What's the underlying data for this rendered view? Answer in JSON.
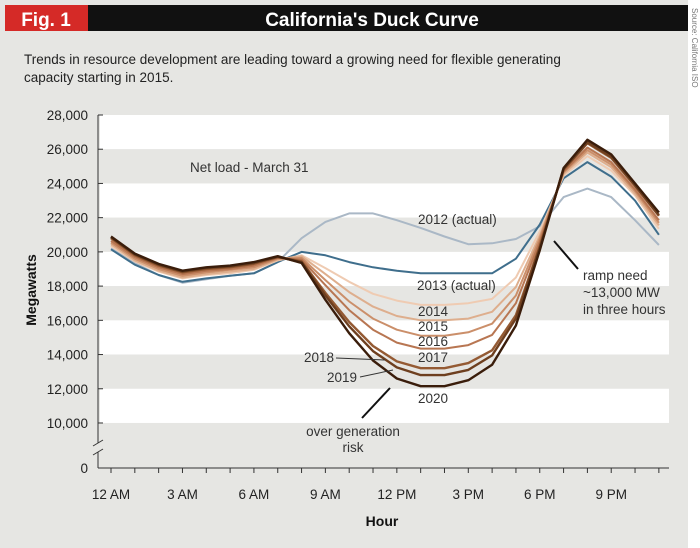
{
  "header": {
    "fig_label": "Fig. 1",
    "title": "California's Duck Curve",
    "fig_color": "#d52a27",
    "title_bar_color": "#111111"
  },
  "source": "Source: California ISO",
  "subtitle_line1": "Trends in resource development are leading toward a growing need for flexible generating",
  "subtitle_line2": "capacity starting in 2015.",
  "chart_data": {
    "type": "line",
    "title": "California's Duck Curve",
    "xlabel": "Hour",
    "ylabel": "Megawatts",
    "ylim": [
      0,
      28000
    ],
    "y_axis_break": true,
    "y_ticks": [
      "28,000",
      "26,000",
      "24,000",
      "22,000",
      "20,000",
      "18,000",
      "16,000",
      "14,000",
      "12,000",
      "10,000",
      "0"
    ],
    "x_tick_labels": [
      "12 AM",
      "3 AM",
      "6 AM",
      "9 AM",
      "12 PM",
      "3 PM",
      "6 PM",
      "9 PM"
    ],
    "x": [
      0,
      1,
      2,
      3,
      4,
      5,
      6,
      7,
      8,
      9,
      10,
      11,
      12,
      13,
      14,
      15,
      16,
      17,
      18,
      19,
      20,
      21,
      22,
      23
    ],
    "grid": "alternating horizontal bands",
    "annotation_net_load": "Net load - March 31",
    "annotation_ramp": [
      "ramp need",
      "~13,000 MW",
      "in three hours"
    ],
    "annotation_overgen": [
      "over generation",
      "risk"
    ],
    "series": [
      {
        "name": "2012 (actual)",
        "color": "#aab8c6",
        "values": [
          20200,
          19350,
          18650,
          18200,
          18400,
          18600,
          18750,
          19400,
          20800,
          21750,
          22250,
          22250,
          21850,
          21400,
          20900,
          20450,
          20500,
          20750,
          21500,
          23200,
          23700,
          23200,
          21850,
          20400
        ]
      },
      {
        "name": "2013 (actual)",
        "color": "#3f6e8c",
        "values": [
          20150,
          19250,
          18650,
          18250,
          18450,
          18600,
          18750,
          19400,
          20000,
          19800,
          19400,
          19100,
          18900,
          18750,
          18750,
          18750,
          18750,
          19600,
          21600,
          24300,
          25250,
          24400,
          23000,
          21000
        ]
      },
      {
        "name": "2014",
        "color": "#efcbb2",
        "values": [
          20350,
          19450,
          18850,
          18450,
          18650,
          18750,
          18950,
          19500,
          19800,
          19050,
          18250,
          17550,
          17150,
          16900,
          16900,
          17000,
          17250,
          18500,
          21200,
          24450,
          25600,
          24750,
          23300,
          21350
        ]
      },
      {
        "name": "2015",
        "color": "#deae8d",
        "values": [
          20450,
          19500,
          18900,
          18500,
          18700,
          18850,
          19000,
          19550,
          19750,
          18700,
          17650,
          16800,
          16250,
          16000,
          16000,
          16100,
          16500,
          17950,
          20950,
          24550,
          25800,
          24950,
          23400,
          21550
        ]
      },
      {
        "name": "2016",
        "color": "#cb8f6a",
        "values": [
          20550,
          19600,
          19000,
          18600,
          18800,
          18950,
          19100,
          19600,
          19650,
          18350,
          17100,
          16100,
          15450,
          15100,
          15100,
          15300,
          15800,
          17450,
          20800,
          24650,
          25950,
          25100,
          23550,
          21700
        ]
      },
      {
        "name": "2017",
        "color": "#b87652",
        "values": [
          20650,
          19700,
          19100,
          18700,
          18900,
          19000,
          19200,
          19650,
          19550,
          18050,
          16600,
          15450,
          14700,
          14350,
          14350,
          14550,
          15150,
          17000,
          20600,
          24700,
          26100,
          25250,
          23650,
          21850
        ]
      },
      {
        "name": "2018",
        "color": "#945a33",
        "values": [
          20800,
          19800,
          19200,
          18800,
          19000,
          19100,
          19300,
          19700,
          19450,
          17600,
          15900,
          14500,
          13600,
          13200,
          13200,
          13500,
          14250,
          16300,
          20350,
          24800,
          26350,
          25500,
          23850,
          22100
        ]
      },
      {
        "name": "2019",
        "color": "#6e3f1f",
        "values": [
          20850,
          19850,
          19250,
          18850,
          19050,
          19150,
          19350,
          19700,
          19400,
          17450,
          15650,
          14200,
          13250,
          12800,
          12800,
          13100,
          13950,
          16100,
          20250,
          24850,
          26400,
          25550,
          23900,
          22150
        ]
      },
      {
        "name": "2020",
        "color": "#3a1d0b",
        "values": [
          20900,
          19900,
          19300,
          18900,
          19100,
          19200,
          19400,
          19750,
          19350,
          17200,
          15250,
          13650,
          12600,
          12150,
          12150,
          12500,
          13400,
          15700,
          20100,
          24900,
          26550,
          25700,
          24000,
          22300
        ]
      }
    ]
  }
}
